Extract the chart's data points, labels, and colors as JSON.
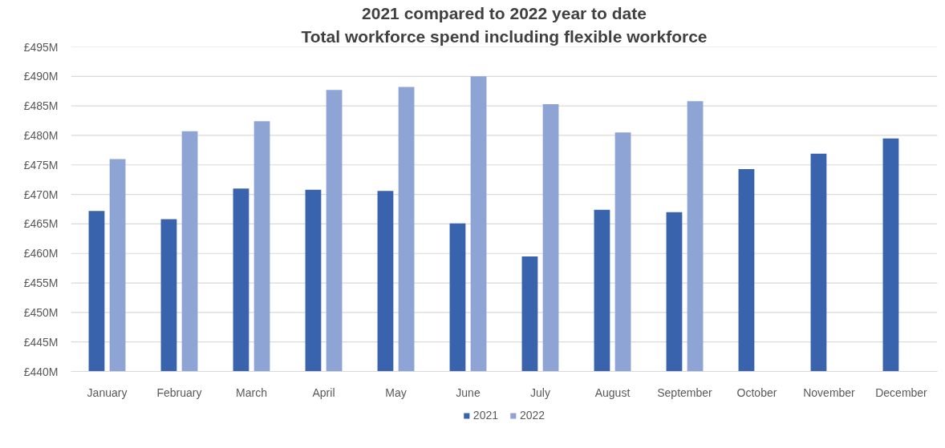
{
  "chart_data": {
    "type": "bar",
    "title": "2021 compared to 2022 year to date",
    "subtitle": "Total workforce spend including flexible workforce",
    "categories": [
      "January",
      "February",
      "March",
      "April",
      "May",
      "June",
      "July",
      "August",
      "September",
      "October",
      "November",
      "December"
    ],
    "series": [
      {
        "name": "2021",
        "color": "#3a63ae",
        "values": [
          467.2,
          465.8,
          471.0,
          470.8,
          470.6,
          465.1,
          459.5,
          467.4,
          467.0,
          474.3,
          476.9,
          479.5
        ]
      },
      {
        "name": "2022",
        "color": "#8ea4d4",
        "values": [
          476.0,
          480.7,
          482.4,
          487.7,
          488.2,
          490.0,
          485.3,
          480.5,
          485.8,
          null,
          null,
          null
        ]
      }
    ],
    "ylim": [
      440,
      495
    ],
    "yticks": [
      {
        "value": 440,
        "label": "£440M"
      },
      {
        "value": 445,
        "label": "£445M"
      },
      {
        "value": 450,
        "label": "£450M"
      },
      {
        "value": 455,
        "label": "£455M"
      },
      {
        "value": 460,
        "label": "£460M"
      },
      {
        "value": 465,
        "label": "£465M"
      },
      {
        "value": 470,
        "label": "£470M"
      },
      {
        "value": 475,
        "label": "£475M"
      },
      {
        "value": 480,
        "label": "£480M"
      },
      {
        "value": 485,
        "label": "£485M"
      },
      {
        "value": 490,
        "label": "£490M"
      },
      {
        "value": 495,
        "label": "£495M"
      }
    ],
    "grid": "y",
    "legend": "bottom"
  }
}
